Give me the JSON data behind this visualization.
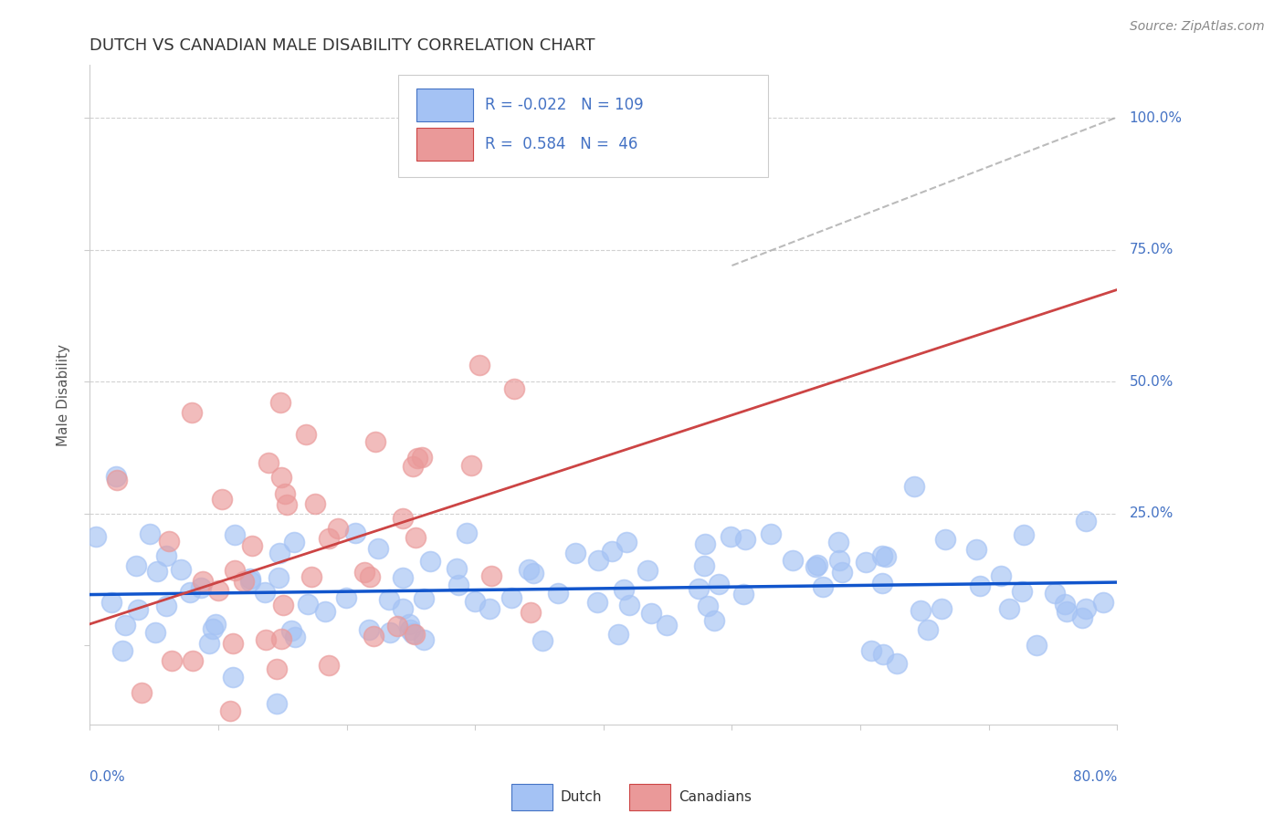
{
  "title": "DUTCH VS CANADIAN MALE DISABILITY CORRELATION CHART",
  "source": "Source: ZipAtlas.com",
  "ylabel_label": "Male Disability",
  "dutch_color": "#a4c2f4",
  "canadian_color": "#ea9999",
  "regression_dutch_color": "#1155cc",
  "regression_canadian_color": "#cc4444",
  "reference_line_color": "#aaaaaa",
  "grid_color": "#cccccc",
  "title_color": "#333333",
  "axis_label_color": "#4472c4",
  "legend_text_color": "#4472c4",
  "source_color": "#888888",
  "xlim": [
    0.0,
    0.8
  ],
  "ylim": [
    -0.15,
    1.05
  ],
  "dutch_N": 109,
  "canadian_N": 46,
  "dutch_R": -0.022,
  "canadian_R": 0.584,
  "dutch_seed": 42,
  "canadian_seed": 123
}
